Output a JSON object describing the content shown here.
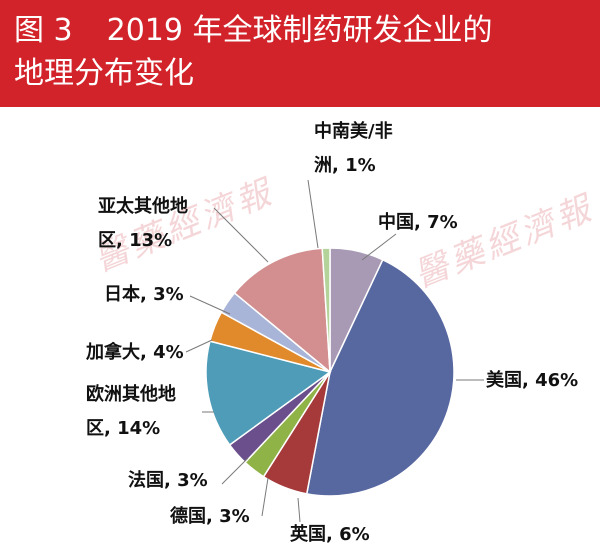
{
  "header": {
    "fig_label": "图 3",
    "title_line1": "2019 年全球制药研发企业的",
    "title_line2": "地理分布变化"
  },
  "watermark": "醫藥經濟報",
  "colors": {
    "header_bg": "#d2232a"
  },
  "chart_data": {
    "type": "pie",
    "title": "2019 年全球制药研发企业的地理分布变化",
    "unit": "%",
    "start_at": "12 o'clock",
    "direction": "clockwise",
    "slices": [
      {
        "name": "中国",
        "value": 7,
        "label_lines": [
          "中国, 7%"
        ],
        "color": "#a89ab5"
      },
      {
        "name": "美国",
        "value": 46,
        "label_lines": [
          "美国, 46%"
        ],
        "color": "#5767a0"
      },
      {
        "name": "英国",
        "value": 6,
        "label_lines": [
          "英国, 6%"
        ],
        "color": "#a63a3a"
      },
      {
        "name": "德国",
        "value": 3,
        "label_lines": [
          "德国, 3%"
        ],
        "color": "#8fb347"
      },
      {
        "name": "法国",
        "value": 3,
        "label_lines": [
          "法国, 3%"
        ],
        "color": "#6a4f8c"
      },
      {
        "name": "欧洲其他地区",
        "value": 14,
        "label_lines": [
          "欧洲其他地",
          "区, 14%"
        ],
        "color": "#4f9cb8"
      },
      {
        "name": "加拿大",
        "value": 4,
        "label_lines": [
          "加拿大, 4%"
        ],
        "color": "#e08a2c"
      },
      {
        "name": "日本",
        "value": 3,
        "label_lines": [
          "日本, 3%"
        ],
        "color": "#a9b5d8"
      },
      {
        "name": "亚太其他地区",
        "value": 13,
        "label_lines": [
          "亚太其他地",
          "区, 13%"
        ],
        "color": "#d38f8f"
      },
      {
        "name": "中南美/非洲",
        "value": 1,
        "label_lines": [
          "中南美/非",
          "洲, 1%"
        ],
        "color": "#b3d39a"
      }
    ]
  }
}
